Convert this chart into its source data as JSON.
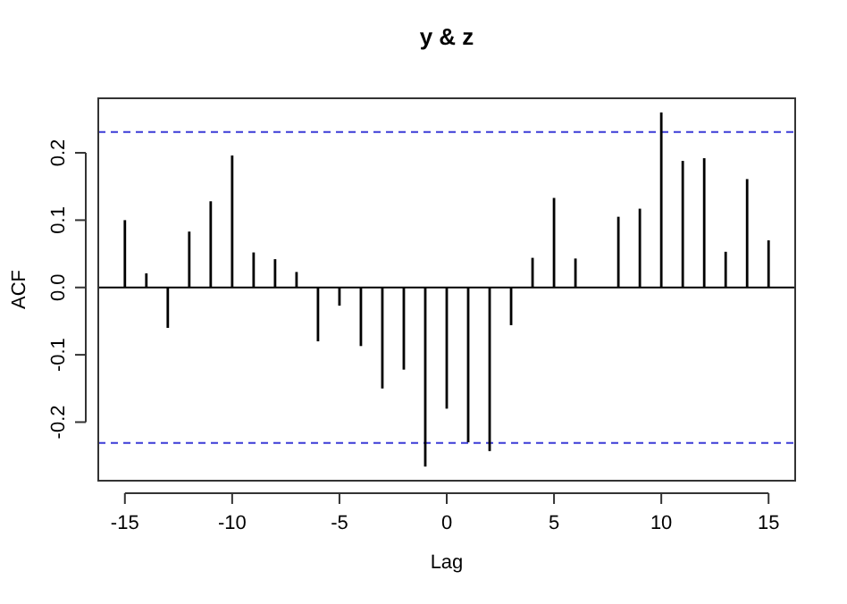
{
  "chart_data": {
    "type": "bar",
    "title": "y & z",
    "xlabel": "Lag",
    "ylabel": "ACF",
    "x": [
      -15,
      -14,
      -13,
      -12,
      -11,
      -10,
      -9,
      -8,
      -7,
      -6,
      -5,
      -4,
      -3,
      -2,
      -1,
      0,
      1,
      2,
      3,
      4,
      5,
      6,
      7,
      8,
      9,
      10,
      11,
      12,
      13,
      14,
      15
    ],
    "values": [
      0.1,
      0.021,
      -0.06,
      0.083,
      0.128,
      0.196,
      0.052,
      0.042,
      0.023,
      -0.08,
      -0.027,
      -0.087,
      -0.15,
      -0.122,
      -0.266,
      -0.18,
      -0.23,
      -0.243,
      -0.056,
      0.044,
      0.133,
      0.043,
      0.0,
      0.105,
      0.117,
      0.26,
      0.188,
      0.192,
      0.053,
      0.161,
      0.07
    ],
    "color": "#000000",
    "xlim": [
      -16.24,
      16.24
    ],
    "ylim": [
      -0.287,
      0.281
    ],
    "xticks": [
      -15,
      -10,
      -5,
      0,
      5,
      10,
      15
    ],
    "yticks": [
      -0.2,
      -0.1,
      {
        "value": 0,
        "label": "0.0"
      },
      0.1,
      0.2
    ],
    "ref_lines": [
      {
        "axis": "y",
        "value": 0,
        "color": "#000000",
        "line_style": "solid"
      },
      {
        "axis": "y",
        "value": 0.231,
        "color": "#3b3bd6",
        "line_style": "dashed"
      },
      {
        "axis": "y",
        "value": -0.231,
        "color": "#3b3bd6",
        "line_style": "dashed"
      }
    ],
    "grid": false
  }
}
